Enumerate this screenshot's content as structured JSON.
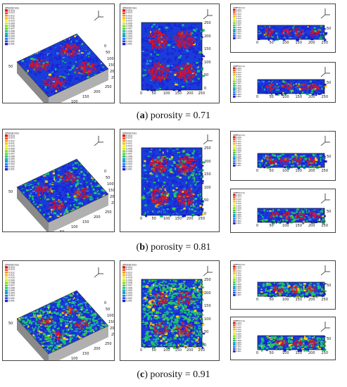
{
  "legend": {
    "title": "SPEED(m/s)",
    "values": [
      "0.014",
      "0.013",
      "0.012",
      "0.011",
      "0.010",
      "0.009",
      "0.008",
      "0.007",
      "0.006",
      "0.005",
      "0.004",
      "0.003",
      "0.002",
      "0.001"
    ],
    "colors": [
      "#e8101a",
      "#f44b1a",
      "#ff8c1a",
      "#ffc21a",
      "#f2ee1a",
      "#c6ee1a",
      "#8ce01a",
      "#3fcf3a",
      "#19c07a",
      "#16b4b4",
      "#1a98e0",
      "#1a72f0",
      "#1a4cf0",
      "#1a24d8"
    ]
  },
  "ticks": {
    "iso_side_a": [
      "0",
      "50",
      "100",
      "150",
      "200",
      "250"
    ],
    "iso_side_b": [
      "250",
      "200",
      "150",
      "100",
      "50",
      "0"
    ],
    "iso_height": "50",
    "plan_x": [
      "0",
      "50",
      "100",
      "150",
      "200",
      "250"
    ],
    "plan_y": [
      "250",
      "200",
      "150",
      "100",
      "50",
      "0"
    ],
    "section_x": [
      "0",
      "50",
      "100",
      "150",
      "200",
      "250"
    ],
    "section_y": "50"
  },
  "captions": [
    {
      "letter": "a",
      "text": "porosity = 0.71"
    },
    {
      "letter": "b",
      "text": "porosity = 0.81"
    },
    {
      "letter": "c",
      "text": "porosity = 0.91"
    }
  ],
  "colors": {
    "vortex": "#e8101a",
    "background": "#1a3cd8",
    "mid": "#19c07a",
    "high": "#ffd21a"
  }
}
